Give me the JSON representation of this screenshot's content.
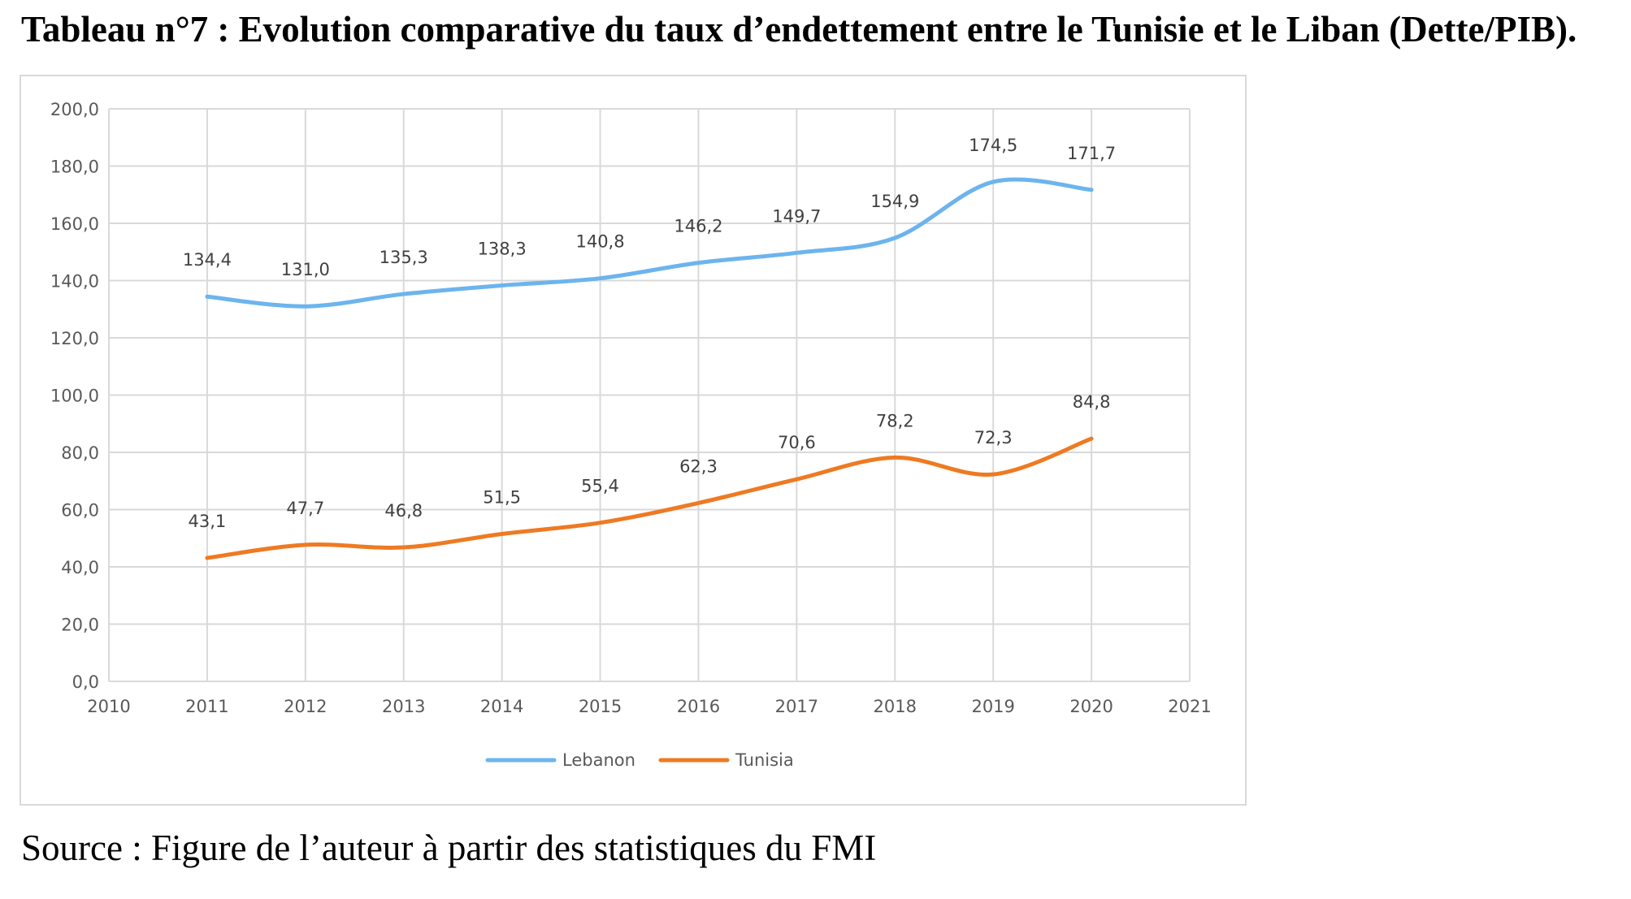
{
  "header": {
    "title": "Tableau n°7 : Evolution comparative du taux d’endettement entre le Tunisie et le Liban (Dette/PIB)."
  },
  "footer": {
    "source": "Source : Figure de l’auteur à partir des statistiques du FMI"
  },
  "chart_data": {
    "type": "line",
    "title": "",
    "xlabel": "",
    "ylabel": "",
    "x": [
      2011,
      2012,
      2013,
      2014,
      2015,
      2016,
      2017,
      2018,
      2019,
      2020
    ],
    "xlim": [
      2010,
      2021
    ],
    "x_ticks": [
      "2010",
      "2011",
      "2012",
      "2013",
      "2014",
      "2015",
      "2016",
      "2017",
      "2018",
      "2019",
      "2020",
      "2021"
    ],
    "ylim": [
      0,
      200
    ],
    "y_ticks": [
      "0,0",
      "20,0",
      "40,0",
      "60,0",
      "80,0",
      "100,0",
      "120,0",
      "140,0",
      "160,0",
      "180,0",
      "200,0"
    ],
    "grid": true,
    "smooth": true,
    "legend_position": "bottom",
    "series": [
      {
        "name": "Lebanon",
        "color": "#6cb4ee",
        "values": [
          134.4,
          131.0,
          135.3,
          138.3,
          140.8,
          146.2,
          149.7,
          154.9,
          174.5,
          171.7
        ],
        "labels": [
          "134,4",
          "131,0",
          "135,3",
          "138,3",
          "140,8",
          "146,2",
          "149,7",
          "154,9",
          "174,5",
          "171,7"
        ]
      },
      {
        "name": "Tunisia",
        "color": "#ee7a22",
        "values": [
          43.1,
          47.7,
          46.8,
          51.5,
          55.4,
          62.3,
          70.6,
          78.2,
          72.3,
          84.8
        ],
        "labels": [
          "43,1",
          "47,7",
          "46,8",
          "51,5",
          "55,4",
          "62,3",
          "70,6",
          "78,2",
          "72,3",
          "84,8"
        ]
      }
    ]
  }
}
